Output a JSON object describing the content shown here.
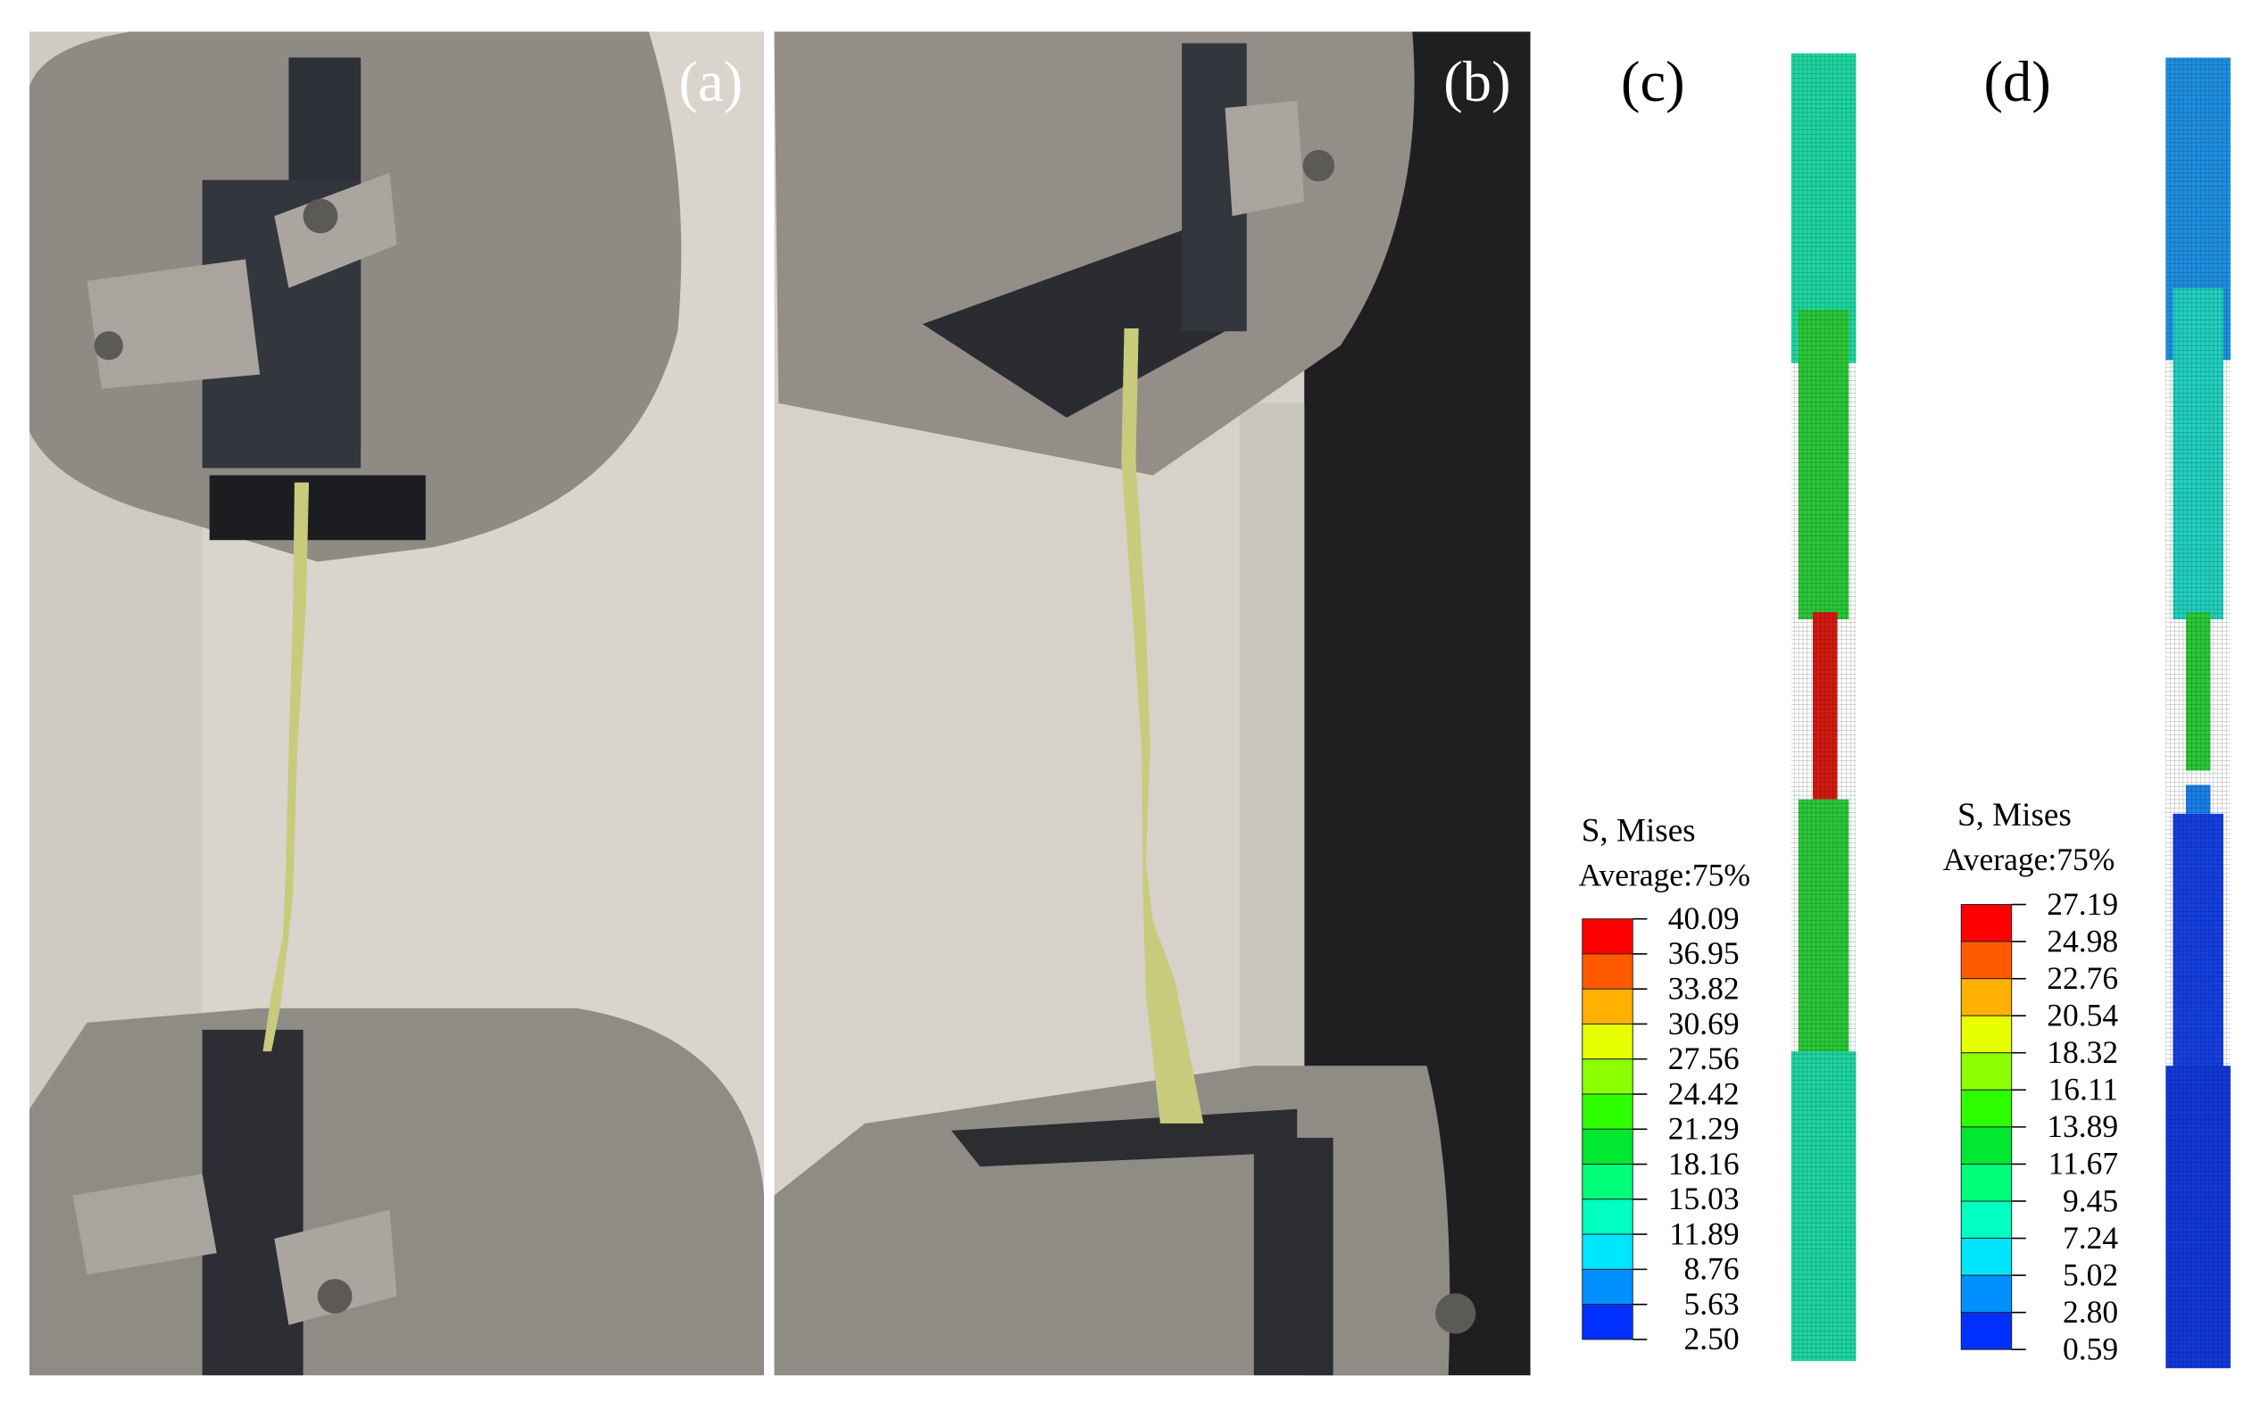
{
  "panels": [
    {
      "label": "(a)"
    },
    {
      "label": "(b)"
    },
    {
      "label": "(c)",
      "legend": {
        "title": "S, Mises",
        "subtitle": "Average:75%",
        "values": [
          "40.09",
          "36.95",
          "33.82",
          "30.69",
          "27.56",
          "24.42",
          "21.29",
          "18.16",
          "15.03",
          "11.89",
          "8.76",
          "5.63",
          "2.50"
        ]
      }
    },
    {
      "label": "(d)",
      "legend": {
        "title": "S, Mises",
        "subtitle": "Average:75%",
        "values": [
          "27.19",
          "24.98",
          "22.76",
          "20.54",
          "18.32",
          "16.11",
          "13.89",
          "11.67",
          "9.45",
          "7.24",
          "5.02",
          "2.80",
          "0.59"
        ]
      }
    }
  ],
  "legend_colors": [
    "#ff0000",
    "#ff5a00",
    "#ffb000",
    "#e8ff00",
    "#8cff00",
    "#2dff00",
    "#00e830",
    "#00ff7a",
    "#00ffc0",
    "#00e6ff",
    "#0090ff",
    "#0030ff"
  ]
}
